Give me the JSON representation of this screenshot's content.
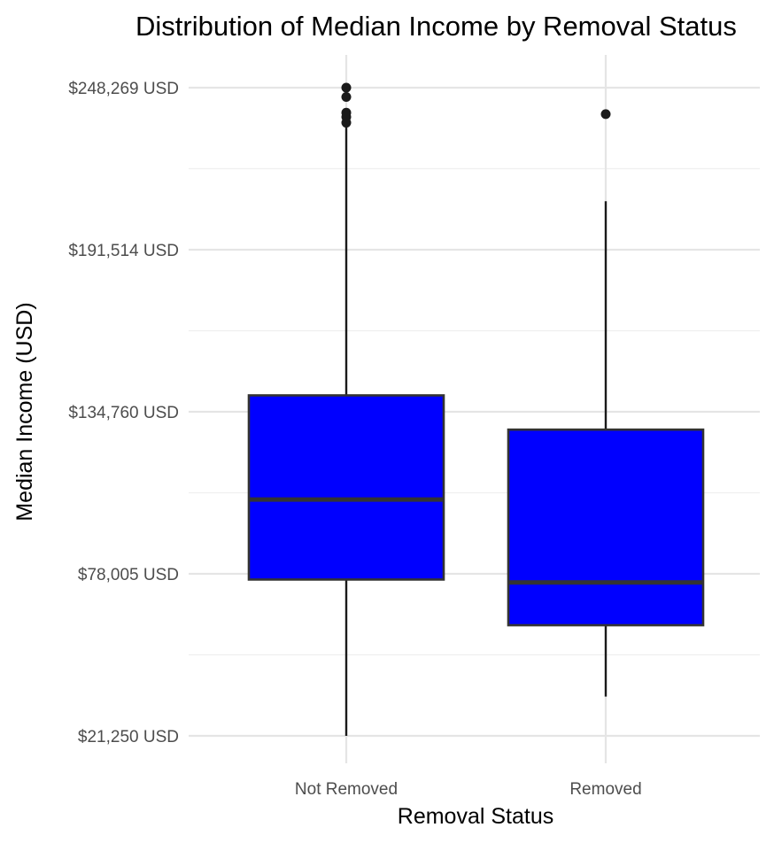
{
  "chart_data": {
    "type": "box",
    "title": "Distribution of Median Income by Removal Status",
    "xlabel": "Removal Status",
    "ylabel": "Median Income (USD)",
    "categories": [
      "Not Removed",
      "Removed"
    ],
    "y_ticks": [
      21250,
      78005,
      134760,
      191514,
      248269
    ],
    "y_tick_labels": [
      "$21,250 USD",
      "$78,005 USD",
      "$134,760 USD",
      "$191,514 USD",
      "$248,269 USD"
    ],
    "ylim": [
      12000,
      258000
    ],
    "grid": true,
    "series": [
      {
        "category": "Not Removed",
        "whisker_low": 21250,
        "q1": 76000,
        "median": 104000,
        "q3": 140500,
        "whisker_high": 235000,
        "outliers": [
          236000,
          238000,
          239500,
          245000,
          248269
        ]
      },
      {
        "category": "Removed",
        "whisker_low": 35000,
        "q1": 60000,
        "median": 75000,
        "q3": 128500,
        "whisker_high": 208500,
        "outliers": [
          239000
        ]
      }
    ],
    "colors": {
      "box_fill": "#0000ff",
      "box_stroke": "#333333",
      "grid_major": "#e5e5e5",
      "grid_minor": "#efefef"
    }
  }
}
